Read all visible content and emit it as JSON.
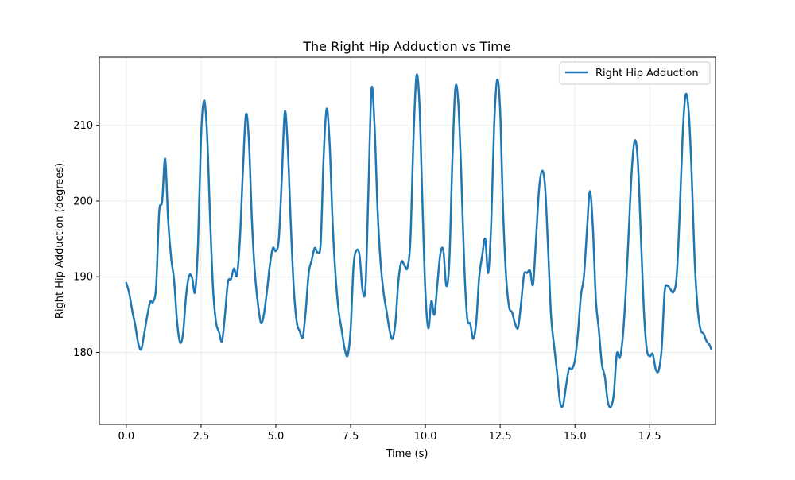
{
  "chart_data": {
    "type": "line",
    "title": "The Right Hip Adduction vs Time",
    "xlabel": "Time (s)",
    "ylabel": "Right Hip Adduction (degrees)",
    "xlim": [
      -0.9,
      19.7
    ],
    "ylim": [
      170.5,
      219.0
    ],
    "xticks": [
      0.0,
      2.5,
      5.0,
      7.5,
      10.0,
      12.5,
      15.0,
      17.5
    ],
    "xtick_labels": [
      "0.0",
      "2.5",
      "5.0",
      "7.5",
      "10.0",
      "12.5",
      "15.0",
      "17.5"
    ],
    "yticks": [
      180,
      190,
      200,
      210
    ],
    "ytick_labels": [
      "180",
      "190",
      "200",
      "210"
    ],
    "grid": true,
    "legend_position": "top-right",
    "line_color": "#1f77b4",
    "series": [
      {
        "name": "Right Hip Adduction",
        "points": [
          [
            0.0,
            189.2
          ],
          [
            0.1,
            187.8
          ],
          [
            0.2,
            185.5
          ],
          [
            0.3,
            183.6
          ],
          [
            0.4,
            181.2
          ],
          [
            0.5,
            180.4
          ],
          [
            0.6,
            182.5
          ],
          [
            0.7,
            184.8
          ],
          [
            0.8,
            186.7
          ],
          [
            0.9,
            186.7
          ],
          [
            1.0,
            188.8
          ],
          [
            1.1,
            198.5
          ],
          [
            1.2,
            200.0
          ],
          [
            1.3,
            205.6
          ],
          [
            1.4,
            197.5
          ],
          [
            1.5,
            192.5
          ],
          [
            1.6,
            189.5
          ],
          [
            1.7,
            184.0
          ],
          [
            1.8,
            181.3
          ],
          [
            1.9,
            182.6
          ],
          [
            2.0,
            187.5
          ],
          [
            2.1,
            190.1
          ],
          [
            2.2,
            189.9
          ],
          [
            2.3,
            188.0
          ],
          [
            2.4,
            194.5
          ],
          [
            2.5,
            208.5
          ],
          [
            2.6,
            213.3
          ],
          [
            2.7,
            209.0
          ],
          [
            2.8,
            198.0
          ],
          [
            2.9,
            188.5
          ],
          [
            3.0,
            184.0
          ],
          [
            3.1,
            182.7
          ],
          [
            3.2,
            181.5
          ],
          [
            3.3,
            185.0
          ],
          [
            3.4,
            189.3
          ],
          [
            3.5,
            189.7
          ],
          [
            3.6,
            191.1
          ],
          [
            3.7,
            190.2
          ],
          [
            3.8,
            195.0
          ],
          [
            3.9,
            204.0
          ],
          [
            4.0,
            211.4
          ],
          [
            4.1,
            208.0
          ],
          [
            4.2,
            197.5
          ],
          [
            4.3,
            190.5
          ],
          [
            4.4,
            186.5
          ],
          [
            4.5,
            183.9
          ],
          [
            4.6,
            185.0
          ],
          [
            4.7,
            188.0
          ],
          [
            4.8,
            191.5
          ],
          [
            4.9,
            193.8
          ],
          [
            5.0,
            193.4
          ],
          [
            5.1,
            195.0
          ],
          [
            5.2,
            203.0
          ],
          [
            5.3,
            211.8
          ],
          [
            5.4,
            207.0
          ],
          [
            5.5,
            197.0
          ],
          [
            5.6,
            188.5
          ],
          [
            5.7,
            184.0
          ],
          [
            5.8,
            182.8
          ],
          [
            5.9,
            182.0
          ],
          [
            6.0,
            185.5
          ],
          [
            6.1,
            190.5
          ],
          [
            6.2,
            192.2
          ],
          [
            6.3,
            193.8
          ],
          [
            6.4,
            193.2
          ],
          [
            6.5,
            194.5
          ],
          [
            6.6,
            206.0
          ],
          [
            6.7,
            212.2
          ],
          [
            6.8,
            207.5
          ],
          [
            6.9,
            197.0
          ],
          [
            7.0,
            190.0
          ],
          [
            7.1,
            185.5
          ],
          [
            7.2,
            183.0
          ],
          [
            7.3,
            180.5
          ],
          [
            7.4,
            179.6
          ],
          [
            7.5,
            183.0
          ],
          [
            7.6,
            191.5
          ],
          [
            7.7,
            193.5
          ],
          [
            7.8,
            192.8
          ],
          [
            7.9,
            188.2
          ],
          [
            8.0,
            188.8
          ],
          [
            8.1,
            202.0
          ],
          [
            8.2,
            214.8
          ],
          [
            8.3,
            210.0
          ],
          [
            8.4,
            199.0
          ],
          [
            8.5,
            192.0
          ],
          [
            8.6,
            188.0
          ],
          [
            8.7,
            185.5
          ],
          [
            8.8,
            183.0
          ],
          [
            8.9,
            181.8
          ],
          [
            9.0,
            184.0
          ],
          [
            9.1,
            189.5
          ],
          [
            9.2,
            192.0
          ],
          [
            9.3,
            191.5
          ],
          [
            9.4,
            191.2
          ],
          [
            9.5,
            195.0
          ],
          [
            9.6,
            208.0
          ],
          [
            9.7,
            216.5
          ],
          [
            9.8,
            213.0
          ],
          [
            9.9,
            200.0
          ],
          [
            10.0,
            188.0
          ],
          [
            10.1,
            183.2
          ],
          [
            10.2,
            186.8
          ],
          [
            10.3,
            185.0
          ],
          [
            10.4,
            189.0
          ],
          [
            10.5,
            193.0
          ],
          [
            10.6,
            193.5
          ],
          [
            10.7,
            188.8
          ],
          [
            10.8,
            192.0
          ],
          [
            10.9,
            205.0
          ],
          [
            11.0,
            214.8
          ],
          [
            11.1,
            213.0
          ],
          [
            11.2,
            203.5
          ],
          [
            11.3,
            191.5
          ],
          [
            11.4,
            184.5
          ],
          [
            11.5,
            183.8
          ],
          [
            11.6,
            181.8
          ],
          [
            11.7,
            184.0
          ],
          [
            11.8,
            190.0
          ],
          [
            11.9,
            192.8
          ],
          [
            12.0,
            195.0
          ],
          [
            12.1,
            190.5
          ],
          [
            12.2,
            197.0
          ],
          [
            12.3,
            210.0
          ],
          [
            12.4,
            216.0
          ],
          [
            12.5,
            212.0
          ],
          [
            12.6,
            198.5
          ],
          [
            12.7,
            190.0
          ],
          [
            12.8,
            186.0
          ],
          [
            12.9,
            185.3
          ],
          [
            13.0,
            183.8
          ],
          [
            13.1,
            183.3
          ],
          [
            13.2,
            186.5
          ],
          [
            13.3,
            190.3
          ],
          [
            13.4,
            190.5
          ],
          [
            13.5,
            190.8
          ],
          [
            13.6,
            189.0
          ],
          [
            13.7,
            195.0
          ],
          [
            13.8,
            201.5
          ],
          [
            13.9,
            204.0
          ],
          [
            14.0,
            202.0
          ],
          [
            14.1,
            194.0
          ],
          [
            14.2,
            185.0
          ],
          [
            14.3,
            181.0
          ],
          [
            14.4,
            177.5
          ],
          [
            14.5,
            173.5
          ],
          [
            14.6,
            173.0
          ],
          [
            14.7,
            175.5
          ],
          [
            14.8,
            177.8
          ],
          [
            14.9,
            177.8
          ],
          [
            15.0,
            179.0
          ],
          [
            15.1,
            182.5
          ],
          [
            15.2,
            187.5
          ],
          [
            15.3,
            190.0
          ],
          [
            15.4,
            196.0
          ],
          [
            15.5,
            201.3
          ],
          [
            15.6,
            196.5
          ],
          [
            15.7,
            187.0
          ],
          [
            15.8,
            183.0
          ],
          [
            15.9,
            178.5
          ],
          [
            16.0,
            176.8
          ],
          [
            16.1,
            173.5
          ],
          [
            16.2,
            172.8
          ],
          [
            16.3,
            174.5
          ],
          [
            16.4,
            179.8
          ],
          [
            16.5,
            179.3
          ],
          [
            16.6,
            182.0
          ],
          [
            16.7,
            188.0
          ],
          [
            16.8,
            196.0
          ],
          [
            16.9,
            204.0
          ],
          [
            17.0,
            208.0
          ],
          [
            17.1,
            205.5
          ],
          [
            17.2,
            196.0
          ],
          [
            17.3,
            186.0
          ],
          [
            17.4,
            180.5
          ],
          [
            17.5,
            179.5
          ],
          [
            17.6,
            179.8
          ],
          [
            17.7,
            177.8
          ],
          [
            17.8,
            177.6
          ],
          [
            17.9,
            180.5
          ],
          [
            18.0,
            188.0
          ],
          [
            18.1,
            188.8
          ],
          [
            18.2,
            188.3
          ],
          [
            18.3,
            188.0
          ],
          [
            18.4,
            190.0
          ],
          [
            18.5,
            198.0
          ],
          [
            18.6,
            208.5
          ],
          [
            18.7,
            214.0
          ],
          [
            18.8,
            212.0
          ],
          [
            18.9,
            204.0
          ],
          [
            19.0,
            192.5
          ],
          [
            19.1,
            186.0
          ],
          [
            19.2,
            183.0
          ],
          [
            19.3,
            182.5
          ],
          [
            19.4,
            181.5
          ],
          [
            19.5,
            181.0
          ],
          [
            19.55,
            180.5
          ]
        ]
      }
    ]
  }
}
